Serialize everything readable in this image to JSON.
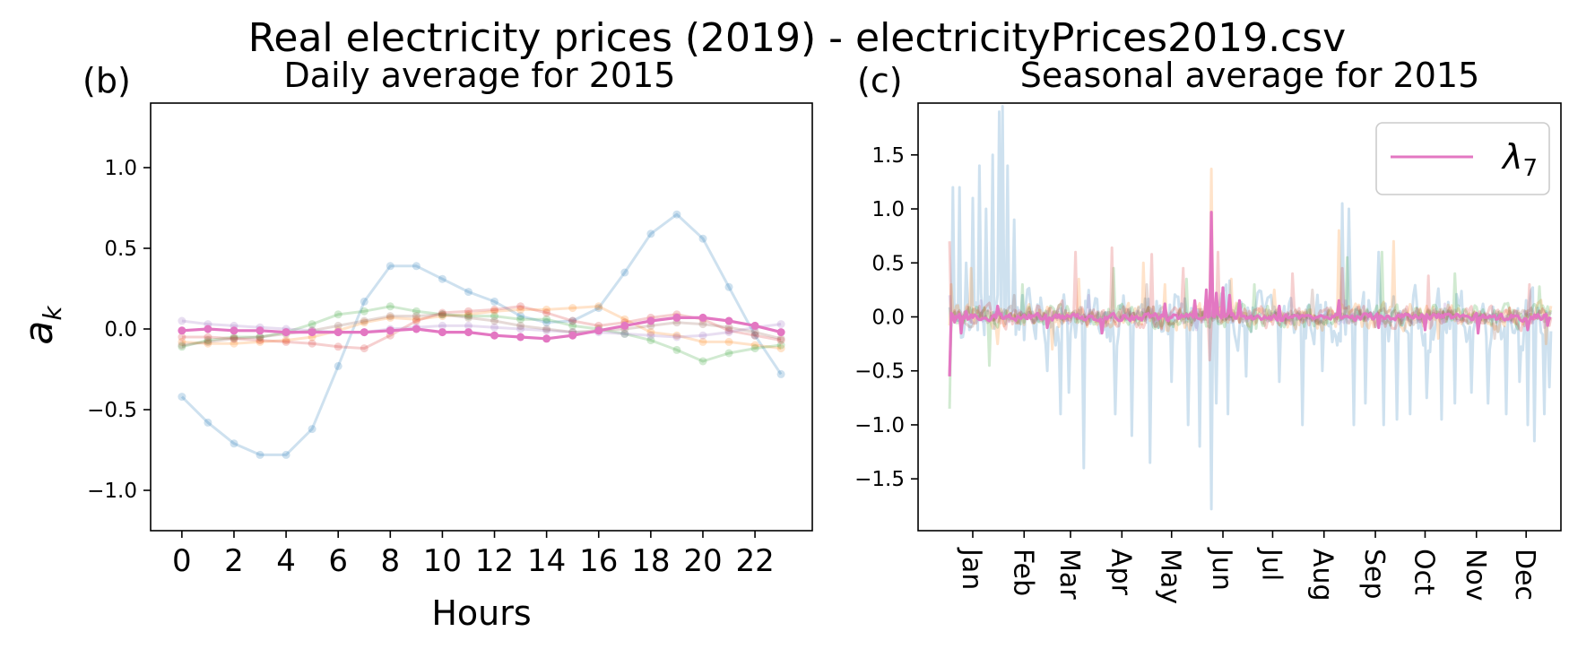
{
  "figure": {
    "suptitle": "Real electricity prices (2019) - electricityPrices2019.csv"
  },
  "colors": {
    "C0": "#1f77b4",
    "C1": "#ff7f0e",
    "C2": "#2ca02c",
    "C3": "#d62728",
    "C4": "#9467bd",
    "C5": "#8c564b",
    "C6": "#e377c2"
  },
  "chart_data": [
    {
      "type": "line",
      "panel_label": "(b)",
      "title": "Daily average for 2015",
      "xlabel": "Hours",
      "ylabel": "a_k",
      "ylabel_display": {
        "base": "a",
        "sub": "k"
      },
      "xlim": [
        -1.2,
        24.2
      ],
      "ylim": [
        -1.25,
        1.4
      ],
      "xticks": [
        0,
        2,
        4,
        6,
        8,
        10,
        12,
        14,
        16,
        18,
        20,
        22
      ],
      "yticks": [
        1.0,
        0.5,
        0.0,
        -0.5,
        -1.0
      ],
      "ytick_labels": [
        "1.0",
        "0.5",
        "0.0",
        "−0.5",
        "−1.0"
      ],
      "x": [
        0,
        1,
        2,
        3,
        4,
        5,
        6,
        7,
        8,
        9,
        10,
        11,
        12,
        13,
        14,
        15,
        16,
        17,
        18,
        19,
        20,
        21,
        22,
        23
      ],
      "series": [
        {
          "color": "C0",
          "opacity": 0.22,
          "markers": true,
          "values": [
            -0.42,
            -0.58,
            -0.71,
            -0.78,
            -0.78,
            -0.62,
            -0.23,
            0.17,
            0.39,
            0.39,
            0.31,
            0.23,
            0.17,
            0.08,
            0.04,
            0.05,
            0.13,
            0.35,
            0.59,
            0.71,
            0.56,
            0.26,
            -0.04,
            -0.28
          ]
        },
        {
          "color": "C1",
          "opacity": 0.22,
          "markers": true,
          "values": [
            -0.08,
            -0.09,
            -0.09,
            -0.08,
            -0.07,
            -0.05,
            -0.01,
            0.04,
            0.07,
            0.06,
            0.08,
            0.09,
            0.11,
            0.12,
            0.12,
            0.13,
            0.14,
            0.06,
            -0.02,
            -0.04,
            -0.08,
            -0.08,
            -0.1,
            -0.12
          ]
        },
        {
          "color": "C2",
          "opacity": 0.22,
          "markers": true,
          "values": [
            -0.11,
            -0.07,
            -0.05,
            -0.05,
            -0.02,
            0.03,
            0.09,
            0.11,
            0.14,
            0.11,
            0.09,
            0.08,
            0.08,
            0.06,
            0.06,
            0.02,
            0.0,
            -0.03,
            -0.07,
            -0.13,
            -0.2,
            -0.15,
            -0.12,
            -0.1
          ]
        },
        {
          "color": "C3",
          "opacity": 0.22,
          "markers": true,
          "values": [
            -0.05,
            -0.05,
            -0.06,
            -0.07,
            -0.08,
            -0.09,
            -0.11,
            -0.12,
            -0.04,
            0.05,
            0.1,
            0.11,
            0.12,
            0.14,
            0.1,
            0.05,
            0.02,
            0.04,
            0.07,
            0.09,
            0.06,
            -0.01,
            -0.04,
            -0.07
          ]
        },
        {
          "color": "C4",
          "opacity": 0.22,
          "markers": true,
          "values": [
            0.05,
            0.03,
            0.02,
            0.01,
            0.0,
            -0.01,
            -0.02,
            -0.02,
            0.0,
            0.01,
            0.02,
            0.02,
            0.01,
            0.0,
            -0.01,
            -0.02,
            -0.02,
            -0.03,
            -0.04,
            -0.05,
            -0.04,
            -0.02,
            0.01,
            0.03
          ]
        },
        {
          "color": "C5",
          "opacity": 0.22,
          "markers": true,
          "values": [
            -0.1,
            -0.08,
            -0.06,
            -0.05,
            -0.03,
            -0.01,
            0.02,
            0.05,
            0.08,
            0.08,
            0.09,
            0.07,
            0.05,
            0.02,
            0.0,
            -0.02,
            -0.01,
            0.0,
            0.02,
            0.04,
            0.03,
            0.01,
            -0.02,
            -0.06
          ]
        },
        {
          "color": "C6",
          "opacity": 1.0,
          "markers": true,
          "highlight": true,
          "values": [
            -0.01,
            0.0,
            -0.01,
            -0.01,
            -0.02,
            -0.02,
            -0.02,
            -0.02,
            -0.01,
            0.0,
            -0.02,
            -0.02,
            -0.04,
            -0.05,
            -0.06,
            -0.04,
            -0.01,
            0.02,
            0.05,
            0.07,
            0.07,
            0.05,
            0.02,
            -0.02
          ]
        }
      ]
    },
    {
      "type": "line",
      "panel_label": "(c)",
      "title": "Seasonal average for 2015",
      "xlabel": "",
      "ylabel": "",
      "xlim": [
        -18,
        370
      ],
      "ylim": [
        -1.98,
        1.98
      ],
      "x_start_day": 1,
      "x_day_count": 364,
      "xticks": [
        15,
        46,
        74,
        105,
        135,
        166,
        196,
        227,
        258,
        288,
        319,
        349
      ],
      "xtick_labels": [
        "Jan",
        "Feb",
        "Mar",
        "Apr",
        "May",
        "Jun",
        "Jul",
        "Aug",
        "Sep",
        "Oct",
        "Nov",
        "Dec"
      ],
      "yticks": [
        1.5,
        1.0,
        0.5,
        0.0,
        -0.5,
        -1.0,
        -1.5
      ],
      "ytick_labels": [
        "1.5",
        "1.0",
        "0.5",
        "0.0",
        "−0.5",
        "−1.0",
        "−1.5"
      ],
      "legend": {
        "location": "upper right",
        "entries": [
          {
            "color": "C6",
            "label": "λ",
            "sub": "7"
          }
        ]
      },
      "series": [
        {
          "color": "C0",
          "opacity": 0.22,
          "amplitude": 0.38,
          "spikes": [
            [
              3,
              1.2
            ],
            [
              7,
              1.2
            ],
            [
              11,
              0.5
            ],
            [
              15,
              1.1
            ],
            [
              19,
              1.4
            ],
            [
              23,
              1.0
            ],
            [
              27,
              1.5
            ],
            [
              31,
              1.9
            ],
            [
              33,
              1.95
            ],
            [
              36,
              1.4
            ],
            [
              40,
              0.9
            ],
            [
              45,
              0.2
            ],
            [
              60,
              -0.5
            ],
            [
              68,
              -0.9
            ],
            [
              73,
              -0.7
            ],
            [
              82,
              -1.4
            ],
            [
              101,
              -0.9
            ],
            [
              111,
              -1.1
            ],
            [
              122,
              -1.35
            ],
            [
              135,
              -0.6
            ],
            [
              145,
              -1.0
            ],
            [
              152,
              -1.2
            ],
            [
              159,
              -1.78
            ],
            [
              162,
              -0.8
            ],
            [
              169,
              -0.9
            ],
            [
              180,
              -0.55
            ],
            [
              200,
              -0.6
            ],
            [
              214,
              -1.0
            ],
            [
              226,
              -0.5
            ],
            [
              238,
              1.05
            ],
            [
              242,
              1.0
            ],
            [
              245,
              -1.0
            ],
            [
              252,
              -0.8
            ],
            [
              260,
              0.6
            ],
            [
              263,
              -1.0
            ],
            [
              271,
              -0.95
            ],
            [
              279,
              -0.9
            ],
            [
              289,
              -0.75
            ],
            [
              298,
              -0.95
            ],
            [
              306,
              -0.8
            ],
            [
              316,
              -0.7
            ],
            [
              326,
              -0.8
            ],
            [
              337,
              -0.9
            ],
            [
              345,
              -0.6
            ],
            [
              350,
              -1.0
            ],
            [
              354,
              -1.15
            ],
            [
              360,
              -0.9
            ],
            [
              363,
              -0.65
            ]
          ]
        },
        {
          "color": "C1",
          "opacity": 0.22,
          "amplitude": 0.18,
          "spikes": [
            [
              2,
              0.3
            ],
            [
              14,
              0.45
            ],
            [
              30,
              -0.25
            ],
            [
              63,
              -0.3
            ],
            [
              79,
              0.35
            ],
            [
              118,
              0.5
            ],
            [
              131,
              0.3
            ],
            [
              159,
              1.37
            ],
            [
              171,
              0.35
            ],
            [
              197,
              0.25
            ],
            [
              236,
              0.8
            ],
            [
              269,
              0.7
            ],
            [
              296,
              -0.2
            ],
            [
              361,
              -0.25
            ]
          ]
        },
        {
          "color": "C2",
          "opacity": 0.22,
          "amplitude": 0.16,
          "spikes": [
            [
              1,
              -0.85
            ],
            [
              25,
              -0.45
            ],
            [
              45,
              0.3
            ],
            [
              100,
              0.45
            ],
            [
              144,
              0.35
            ],
            [
              185,
              0.3
            ],
            [
              241,
              0.55
            ],
            [
              262,
              0.6
            ],
            [
              306,
              0.4
            ],
            [
              357,
              0.28
            ]
          ]
        },
        {
          "color": "C3",
          "opacity": 0.22,
          "amplitude": 0.15,
          "spikes": [
            [
              1,
              0.7
            ],
            [
              69,
              0.15
            ],
            [
              77,
              0.6
            ],
            [
              99,
              0.64
            ],
            [
              123,
              0.58
            ],
            [
              142,
              0.45
            ],
            [
              158,
              -0.4
            ],
            [
              163,
              0.6
            ],
            [
              208,
              0.4
            ],
            [
              238,
              0.45
            ],
            [
              290,
              0.38
            ],
            [
              351,
              0.3
            ]
          ]
        },
        {
          "color": "C4",
          "opacity": 0.22,
          "amplitude": 0.09,
          "spikes": [
            [
              1,
              0.2
            ],
            [
              20,
              0.15
            ],
            [
              85,
              0.2
            ],
            [
              150,
              -0.12
            ],
            [
              240,
              0.15
            ],
            [
              300,
              0.12
            ],
            [
              360,
              -0.1
            ]
          ]
        },
        {
          "color": "C5",
          "opacity": 0.22,
          "amplitude": 0.11,
          "spikes": [
            [
              1,
              -0.55
            ],
            [
              40,
              0.2
            ],
            [
              120,
              0.3
            ],
            [
              220,
              0.25
            ],
            [
              330,
              -0.2
            ]
          ]
        },
        {
          "color": "C6",
          "opacity": 1.0,
          "highlight": true,
          "amplitude": 0.05,
          "name": "λ7",
          "spikes": [
            [
              1,
              -0.55
            ],
            [
              4,
              -0.05
            ],
            [
              8,
              -0.15
            ],
            [
              11,
              0.05
            ],
            [
              30,
              0.1
            ],
            [
              60,
              -0.1
            ],
            [
              93,
              -0.15
            ],
            [
              131,
              0.12
            ],
            [
              149,
              0.15
            ],
            [
              156,
              0.25
            ],
            [
              159,
              0.97
            ],
            [
              162,
              0.22
            ],
            [
              166,
              0.27
            ],
            [
              170,
              0.2
            ],
            [
              176,
              0.15
            ],
            [
              200,
              0.1
            ],
            [
              236,
              0.15
            ],
            [
              260,
              -0.1
            ],
            [
              288,
              -0.12
            ],
            [
              320,
              -0.15
            ],
            [
              350,
              -0.12
            ],
            [
              362,
              -0.08
            ]
          ]
        }
      ]
    }
  ]
}
